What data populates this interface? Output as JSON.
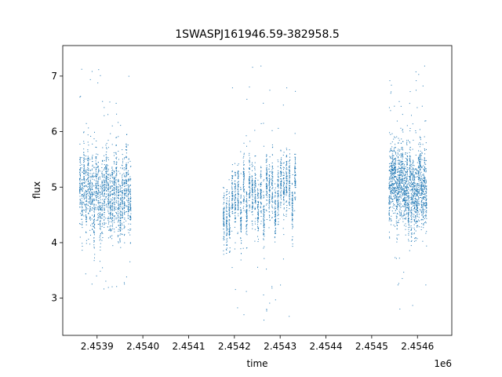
{
  "chart_data": {
    "type": "scatter",
    "title": "1SWASPJ161946.59-382958.5",
    "xlabel": "time",
    "ylabel": "flux",
    "x_offset_label": "1e6",
    "xlim": [
      2453825,
      2454675
    ],
    "ylim": [
      2.33,
      7.55
    ],
    "x_ticks": [
      2453900,
      2454000,
      2454100,
      2454200,
      2454300,
      2454400,
      2454500,
      2454600
    ],
    "x_tick_labels": [
      "2.4539",
      "2.4540",
      "2.4541",
      "2.4542",
      "2.4543",
      "2.4544",
      "2.4545",
      "2.4546"
    ],
    "y_ticks": [
      3,
      4,
      5,
      6,
      7
    ],
    "y_tick_labels": [
      "3",
      "4",
      "5",
      "6",
      "7"
    ],
    "grid": false,
    "marker_color": "#1f77b4",
    "segments": [
      {
        "x_start": 2453862,
        "x_end": 2453972,
        "y_center": 4.9,
        "y_spread": 0.55,
        "outlier_range": [
          3.1,
          7.3
        ]
      },
      {
        "x_start": 2454176,
        "x_end": 2454332,
        "y_center": 4.8,
        "y_spread": 0.45,
        "outlier_range": [
          2.6,
          7.2
        ]
      },
      {
        "x_start": 2454538,
        "x_end": 2454618,
        "y_center": 5.0,
        "y_spread": 0.55,
        "outlier_range": [
          2.8,
          7.2
        ]
      }
    ]
  }
}
